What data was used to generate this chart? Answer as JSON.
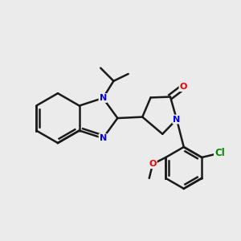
{
  "background_color": "#ebebeb",
  "bond_color": "#1a1a1a",
  "N_color": "#0000ee",
  "O_color": "#ee0000",
  "Cl_color": "#008800",
  "bond_width": 1.8,
  "figsize": [
    3.0,
    3.0
  ],
  "dpi": 100,
  "xlim": [
    0,
    10
  ],
  "ylim": [
    0,
    10
  ]
}
